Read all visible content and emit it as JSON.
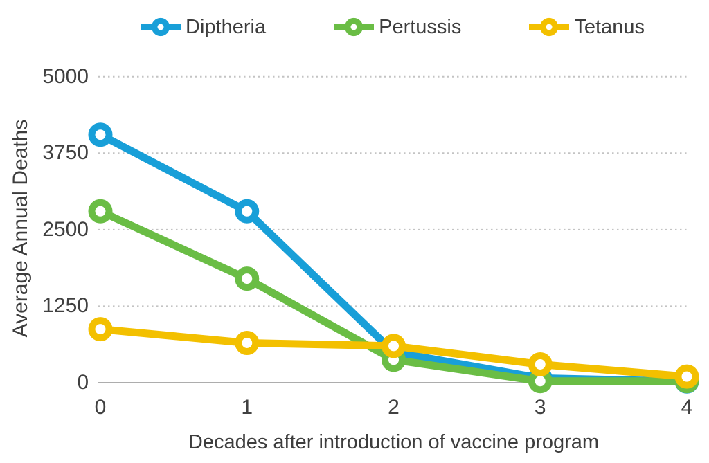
{
  "chart_data": {
    "type": "line",
    "x": [
      0,
      1,
      2,
      3,
      4
    ],
    "x_ticks": [
      "0",
      "1",
      "2",
      "3",
      "4"
    ],
    "y_ticks": [
      0,
      1250,
      2500,
      3750,
      5000
    ],
    "ylim": [
      0,
      5000
    ],
    "xlabel": "Decades after introduction of vaccine program",
    "ylabel": "Average Annual Deaths",
    "grid": "horizontal-dotted",
    "legend_position": "top",
    "marker_style": "ring",
    "series": [
      {
        "name": "Diptheria",
        "color": "#189FD8",
        "values": [
          4050,
          2800,
          500,
          75,
          20
        ]
      },
      {
        "name": "Pertussis",
        "color": "#6ABD45",
        "values": [
          2800,
          1700,
          375,
          25,
          25
        ]
      },
      {
        "name": "Tetanus",
        "color": "#F3C000",
        "values": [
          875,
          650,
          600,
          300,
          100
        ]
      }
    ]
  },
  "style_colors": {
    "text": "#3d3d3d",
    "tick_text": "#404040",
    "gridline": "#c3c3c3",
    "axis_line": "#adadad",
    "background": "#ffffff"
  }
}
